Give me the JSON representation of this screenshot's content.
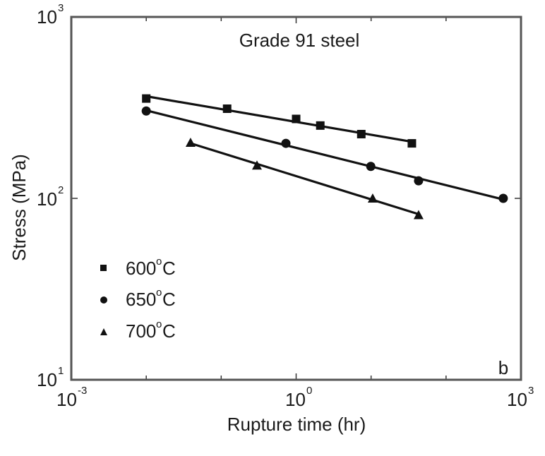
{
  "chart_data": {
    "type": "scatter",
    "title": "Grade 91 steel",
    "panel_label": "b",
    "xlabel": "Rupture time (hr)",
    "ylabel": "Stress (MPa)",
    "xscale": "log",
    "yscale": "log",
    "xlim": [
      0.001,
      1000
    ],
    "ylim": [
      10,
      1000
    ],
    "x_ticks": [
      {
        "base": "10",
        "exp": "-3",
        "value": 0.001
      },
      {
        "base": "10",
        "exp": "0",
        "value": 1
      },
      {
        "base": "10",
        "exp": "3",
        "value": 1000
      }
    ],
    "y_ticks": [
      {
        "base": "10",
        "exp": "1",
        "value": 10
      },
      {
        "base": "10",
        "exp": "2",
        "value": 100
      },
      {
        "base": "10",
        "exp": "3",
        "value": 1000
      }
    ],
    "grid": false,
    "legend_position": "lower left",
    "series": [
      {
        "name": "600°C",
        "label_main": "600",
        "marker": "square",
        "fit_line": true,
        "x": [
          0.01,
          0.12,
          1.0,
          2.1,
          7.4,
          35
        ],
        "y": [
          355,
          312,
          274,
          252,
          226,
          201
        ]
      },
      {
        "name": "650°C",
        "label_main": "650",
        "marker": "circle",
        "fit_line": true,
        "x": [
          0.01,
          0.73,
          9.9,
          43,
          580
        ],
        "y": [
          303,
          201,
          150,
          125,
          100
        ]
      },
      {
        "name": "700°C",
        "label_main": "700",
        "marker": "triangle",
        "fit_line": true,
        "x": [
          0.039,
          0.3,
          10.5,
          43
        ],
        "y": [
          203,
          152,
          100,
          81
        ]
      }
    ]
  },
  "legend": {
    "degree_symbol": "o",
    "unit": "C"
  }
}
